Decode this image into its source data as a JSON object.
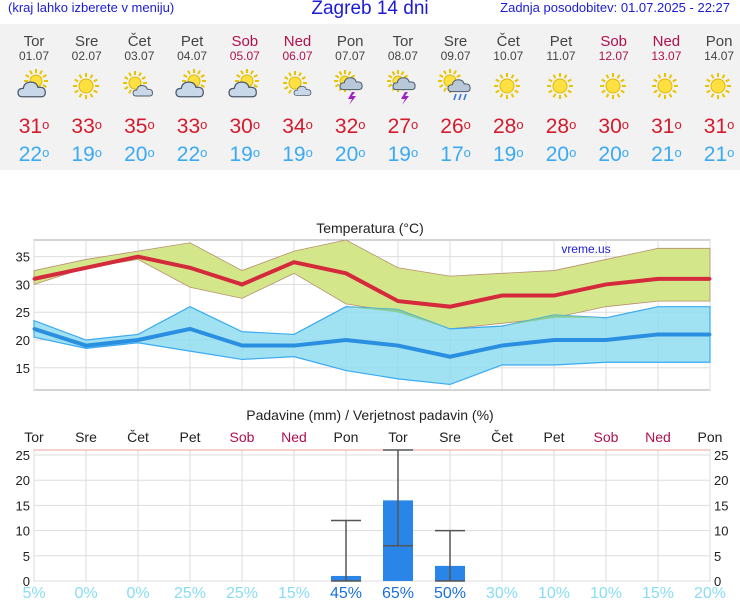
{
  "header": {
    "left_note": "(kraj lahko izberete v meniju)",
    "title": "Zagreb 14 dni",
    "updated": "Zadnja posodobitev: 01.07.2025 - 22:27"
  },
  "days": [
    {
      "name": "Tor",
      "date": "01.07",
      "weekend": false,
      "icon": "partly-cloudy-icon",
      "max": "31",
      "min": "22"
    },
    {
      "name": "Sre",
      "date": "02.07",
      "weekend": false,
      "icon": "sunny-icon",
      "max": "33",
      "min": "19"
    },
    {
      "name": "Čet",
      "date": "03.07",
      "weekend": false,
      "icon": "sun-cloud-icon",
      "max": "35",
      "min": "20"
    },
    {
      "name": "Pet",
      "date": "04.07",
      "weekend": false,
      "icon": "partly-cloudy-icon",
      "max": "33",
      "min": "22"
    },
    {
      "name": "Sob",
      "date": "05.07",
      "weekend": true,
      "icon": "partly-cloudy-icon",
      "max": "30",
      "min": "19"
    },
    {
      "name": "Ned",
      "date": "06.07",
      "weekend": true,
      "icon": "sun-small-cloud-icon",
      "max": "34",
      "min": "19"
    },
    {
      "name": "Pon",
      "date": "07.07",
      "weekend": false,
      "icon": "thunderstorm-icon",
      "max": "32",
      "min": "20"
    },
    {
      "name": "Tor",
      "date": "08.07",
      "weekend": false,
      "icon": "thunderstorm-icon",
      "max": "27",
      "min": "19"
    },
    {
      "name": "Sre",
      "date": "09.07",
      "weekend": false,
      "icon": "sun-rain-icon",
      "max": "26",
      "min": "17"
    },
    {
      "name": "Čet",
      "date": "10.07",
      "weekend": false,
      "icon": "sunny-icon",
      "max": "28",
      "min": "19"
    },
    {
      "name": "Pet",
      "date": "11.07",
      "weekend": false,
      "icon": "sunny-icon",
      "max": "28",
      "min": "20"
    },
    {
      "name": "Sob",
      "date": "12.07",
      "weekend": true,
      "icon": "sunny-icon",
      "max": "30",
      "min": "20"
    },
    {
      "name": "Ned",
      "date": "13.07",
      "weekend": true,
      "icon": "sunny-icon",
      "max": "31",
      "min": "21"
    },
    {
      "name": "Pon",
      "date": "14.07",
      "weekend": false,
      "icon": "sunny-icon",
      "max": "31",
      "min": "21"
    }
  ],
  "colors": {
    "max_text": "#d41a2c",
    "min_text": "#3aaaf2",
    "weekend": "#b01050",
    "max_line": "#d42a3c",
    "min_line": "#2a8fe0",
    "max_band": "#d4e68a",
    "min_band": "#8fdcf0",
    "overlap": "#88cc88",
    "bar": "#2a85e8",
    "whisker": "#555555",
    "prob_low": "#88ddf5",
    "prob_high": "#1a70d8"
  },
  "chart_data": [
    {
      "type": "line",
      "title": "Temperatura (°C)",
      "watermark": "vreme.us",
      "x": [
        "Tor",
        "Sre",
        "Čet",
        "Pet",
        "Sob",
        "Ned",
        "Pon",
        "Tor",
        "Sre",
        "Čet",
        "Pet",
        "Sob",
        "Ned",
        "Pon"
      ],
      "ylim": [
        11,
        38
      ],
      "yticks": [
        15,
        20,
        25,
        30,
        35
      ],
      "grid": true,
      "series": [
        {
          "name": "max",
          "values": [
            31,
            33,
            35,
            33,
            30,
            34,
            32,
            27,
            26,
            28,
            28,
            30,
            31,
            31
          ],
          "band_low": [
            30,
            33,
            34.5,
            29.5,
            27.5,
            32,
            26.5,
            25,
            22,
            23,
            24,
            26,
            27,
            27
          ],
          "band_high": [
            32.5,
            34.5,
            36,
            37.5,
            32.5,
            36,
            38,
            33,
            31.5,
            32,
            32.5,
            34.5,
            36.5,
            36.5
          ]
        },
        {
          "name": "min",
          "values": [
            22,
            19,
            20,
            22,
            19,
            19,
            20,
            19,
            17,
            19,
            20,
            20,
            21,
            21
          ],
          "band_low": [
            20.5,
            18.5,
            19.5,
            18,
            16.5,
            17,
            14.5,
            13,
            12,
            15.5,
            15.5,
            16,
            16,
            16
          ],
          "band_high": [
            23.5,
            20,
            21,
            26,
            21.5,
            21,
            26,
            25.5,
            22,
            22.5,
            24.5,
            24,
            26,
            26
          ]
        }
      ]
    },
    {
      "type": "bar",
      "title": "Padavine (mm) / Verjetnost padavin (%)",
      "categories": [
        "Tor",
        "Sre",
        "Čet",
        "Pet",
        "Sob",
        "Ned",
        "Pon",
        "Tor",
        "Sre",
        "Čet",
        "Pet",
        "Sob",
        "Ned",
        "Pon"
      ],
      "values": [
        0,
        0,
        0,
        0,
        0,
        0,
        1,
        16,
        3,
        0,
        0,
        0,
        0,
        0
      ],
      "whisker_low": [
        null,
        null,
        null,
        null,
        null,
        null,
        0,
        7,
        0,
        null,
        null,
        null,
        null,
        null
      ],
      "whisker_high": [
        null,
        null,
        null,
        null,
        null,
        null,
        12,
        26,
        10,
        null,
        null,
        null,
        null,
        null
      ],
      "probability": [
        "5%",
        "0%",
        "0%",
        "25%",
        "25%",
        "15%",
        "45%",
        "65%",
        "50%",
        "30%",
        "10%",
        "10%",
        "15%",
        "20%"
      ],
      "ylim": [
        0,
        26
      ],
      "yticks": [
        0,
        5,
        10,
        15,
        20,
        25
      ],
      "grid": true
    }
  ]
}
